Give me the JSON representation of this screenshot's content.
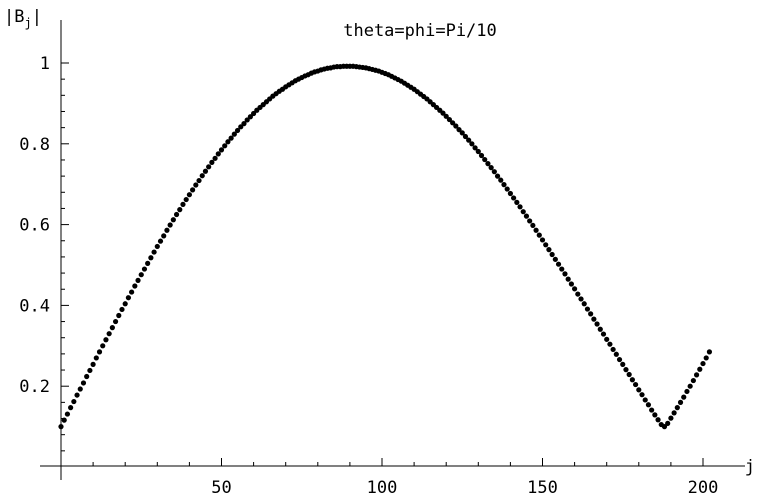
{
  "chart_data": {
    "type": "scatter",
    "title": "theta=phi=Pi/10",
    "xlabel": "j",
    "ylabel": "|Bj|",
    "ylabel_base": "B",
    "ylabel_sub": "j",
    "xlim": [
      0,
      202
    ],
    "ylim": [
      0,
      1.02
    ],
    "grid": false,
    "x_ticks": [
      50,
      100,
      150,
      200
    ],
    "x_tick_labels": [
      "50",
      "100",
      "150",
      "200"
    ],
    "y_ticks": [
      0.2,
      0.4,
      0.6,
      0.8,
      1
    ],
    "y_tick_labels": [
      "0.2",
      "0.4",
      "0.6",
      "0.8",
      "1"
    ],
    "marker_color": "#000000",
    "series": [
      {
        "x_start": 0,
        "x_end": 200,
        "x_step": 1,
        "y_values": [
          0.1,
          0.116,
          0.131,
          0.147,
          0.162,
          0.178,
          0.193,
          0.208,
          0.224,
          0.239,
          0.254,
          0.27,
          0.285,
          0.3,
          0.315,
          0.33,
          0.345,
          0.36,
          0.375,
          0.39,
          0.404,
          0.419,
          0.433,
          0.448,
          0.462,
          0.476,
          0.49,
          0.504,
          0.518,
          0.532,
          0.546,
          0.559,
          0.572,
          0.586,
          0.599,
          0.612,
          0.625,
          0.637,
          0.65,
          0.662,
          0.674,
          0.686,
          0.698,
          0.709,
          0.721,
          0.732,
          0.743,
          0.754,
          0.764,
          0.775,
          0.785,
          0.795,
          0.805,
          0.814,
          0.824,
          0.833,
          0.842,
          0.85,
          0.859,
          0.867,
          0.875,
          0.883,
          0.89,
          0.897,
          0.904,
          0.911,
          0.918,
          0.924,
          0.93,
          0.935,
          0.941,
          0.946,
          0.951,
          0.956,
          0.96,
          0.964,
          0.968,
          0.971,
          0.975,
          0.978,
          0.98,
          0.983,
          0.985,
          0.987,
          0.988,
          0.99,
          0.991,
          0.991,
          0.992,
          0.992,
          0.992,
          0.992,
          0.991,
          0.99,
          0.989,
          0.988,
          0.986,
          0.984,
          0.982,
          0.98,
          0.977,
          0.974,
          0.971,
          0.967,
          0.963,
          0.959,
          0.955,
          0.95,
          0.945,
          0.94,
          0.935,
          0.929,
          0.923,
          0.917,
          0.911,
          0.904,
          0.897,
          0.89,
          0.883,
          0.876,
          0.868,
          0.86,
          0.852,
          0.844,
          0.835,
          0.827,
          0.818,
          0.809,
          0.8,
          0.79,
          0.781,
          0.771,
          0.761,
          0.751,
          0.741,
          0.731,
          0.72,
          0.71,
          0.699,
          0.688,
          0.677,
          0.666,
          0.655,
          0.644,
          0.632,
          0.621,
          0.609,
          0.598,
          0.586,
          0.574,
          0.562,
          0.55,
          0.538,
          0.526,
          0.514,
          0.502,
          0.49,
          0.478,
          0.465,
          0.453,
          0.441,
          0.428,
          0.416,
          0.404,
          0.391,
          0.379,
          0.366,
          0.354,
          0.341,
          0.329,
          0.316,
          0.304,
          0.291,
          0.279,
          0.266,
          0.254,
          0.241,
          0.229,
          0.216,
          0.204,
          0.191,
          0.179,
          0.166,
          0.154,
          0.141,
          0.129,
          0.117,
          0.105,
          0.1,
          0.108,
          0.121,
          0.134,
          0.147,
          0.16,
          0.173,
          0.187,
          0.2,
          0.214,
          0.228,
          0.242,
          0.256,
          0.27,
          0.285
        ]
      }
    ]
  }
}
